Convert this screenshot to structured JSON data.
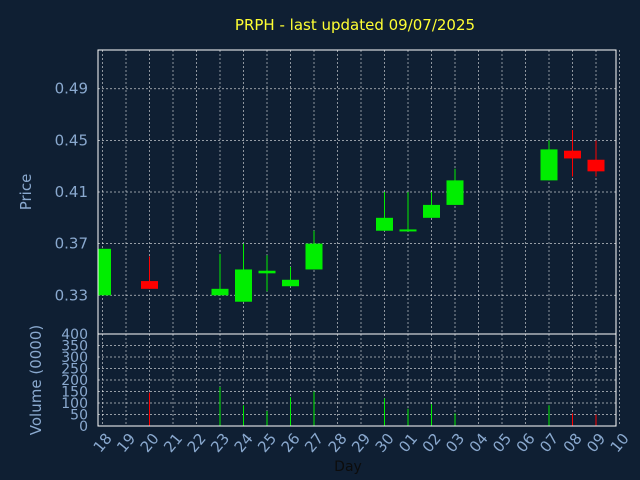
{
  "title": "PRPH - last updated 09/07/2025",
  "chart_data": [
    {
      "type": "candlestick",
      "ylabel": "Price",
      "ylim": [
        0.3,
        0.52
      ],
      "yticks": [
        0.33,
        0.37,
        0.41,
        0.45,
        0.49
      ],
      "ytick_labels": [
        "0.33",
        "0.37",
        "0.41",
        "0.45",
        "0.49"
      ],
      "grid": true,
      "up_color": "#00ee00",
      "down_color": "#ff0000",
      "candles": [
        {
          "day": "18",
          "open": 0.33,
          "close": 0.366,
          "high": 0.366,
          "low": 0.33
        },
        {
          "day": "20",
          "open": 0.341,
          "close": 0.335,
          "high": 0.36,
          "low": 0.335
        },
        {
          "day": "23",
          "open": 0.33,
          "close": 0.335,
          "high": 0.362,
          "low": 0.33
        },
        {
          "day": "24",
          "open": 0.325,
          "close": 0.35,
          "high": 0.37,
          "low": 0.325
        },
        {
          "day": "25",
          "open": 0.347,
          "close": 0.349,
          "high": 0.361,
          "low": 0.333
        },
        {
          "day": "26",
          "open": 0.337,
          "close": 0.342,
          "high": 0.352,
          "low": 0.337
        },
        {
          "day": "27",
          "open": 0.35,
          "close": 0.37,
          "high": 0.38,
          "low": 0.35
        },
        {
          "day": "30",
          "open": 0.38,
          "close": 0.39,
          "high": 0.41,
          "low": 0.38
        },
        {
          "day": "01",
          "open": 0.38,
          "close": 0.381,
          "high": 0.41,
          "low": 0.38
        },
        {
          "day": "02",
          "open": 0.39,
          "close": 0.4,
          "high": 0.41,
          "low": 0.39
        },
        {
          "day": "03",
          "open": 0.4,
          "close": 0.419,
          "high": 0.428,
          "low": 0.4
        },
        {
          "day": "07",
          "open": 0.419,
          "close": 0.443,
          "high": 0.45,
          "low": 0.419
        },
        {
          "day": "08",
          "open": 0.442,
          "close": 0.436,
          "high": 0.458,
          "low": 0.422
        },
        {
          "day": "09",
          "open": 0.435,
          "close": 0.426,
          "high": 0.45,
          "low": 0.422
        }
      ]
    },
    {
      "type": "bar",
      "xlabel": "Day",
      "ylabel": "Volume (0000)",
      "ylim": [
        0,
        400
      ],
      "yticks": [
        0,
        50,
        100,
        150,
        200,
        250,
        300,
        350,
        400
      ],
      "ytick_labels": [
        "0",
        "50",
        "100",
        "150",
        "200",
        "250",
        "300",
        "350",
        "400"
      ],
      "categories": [
        "18",
        "19",
        "20",
        "21",
        "22",
        "23",
        "24",
        "25",
        "26",
        "27",
        "28",
        "29",
        "30",
        "01",
        "02",
        "03",
        "04",
        "05",
        "06",
        "07",
        "08",
        "09",
        "10"
      ],
      "values": [
        0,
        0,
        145,
        0,
        0,
        170,
        90,
        65,
        125,
        150,
        0,
        0,
        120,
        75,
        95,
        55,
        0,
        0,
        0,
        90,
        55,
        50,
        0
      ],
      "colors": [
        "",
        "",
        "#ff0000",
        "",
        "",
        "#00ee00",
        "#00ee00",
        "#00ee00",
        "#00ee00",
        "#00ee00",
        "",
        "",
        "#00ee00",
        "#00ee00",
        "#00ee00",
        "#00ee00",
        "",
        "",
        "",
        "#00ee00",
        "#ff0000",
        "#ff0000",
        ""
      ],
      "grid": true
    }
  ]
}
